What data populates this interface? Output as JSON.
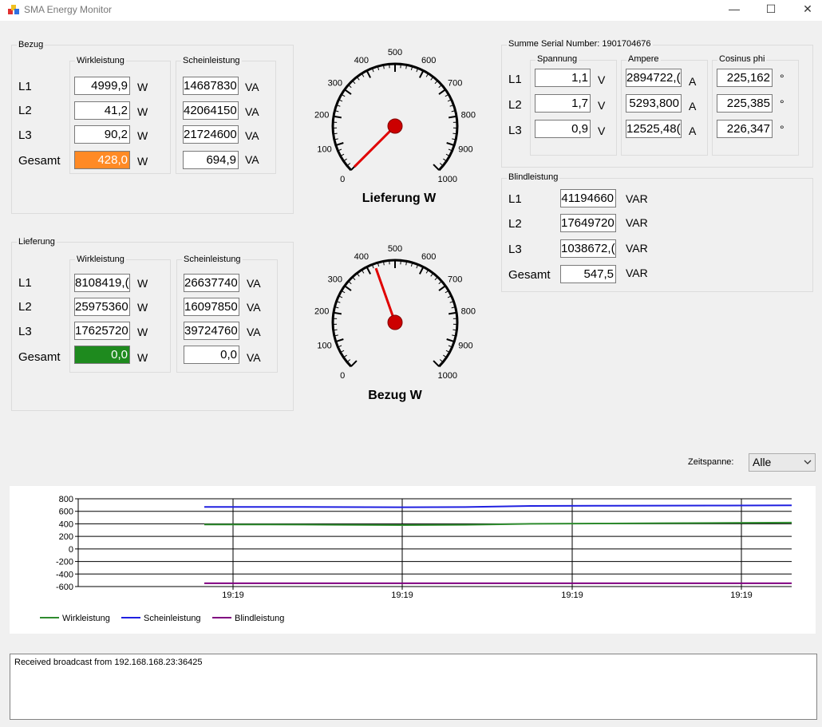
{
  "window": {
    "title": "SMA Energy Monitor",
    "minimize": "—",
    "maximize": "☐",
    "close": "✕"
  },
  "bezug": {
    "title": "Bezug",
    "wirk_title": "Wirkleistung",
    "schein_title": "Scheinleistung",
    "rows": [
      {
        "label": "L1",
        "wirk": "4999,9",
        "wirk_unit": "W",
        "schein": "14687830",
        "schein_unit": "VA"
      },
      {
        "label": "L2",
        "wirk": "41,2",
        "wirk_unit": "W",
        "schein": "42064150",
        "schein_unit": "VA"
      },
      {
        "label": "L3",
        "wirk": "90,2",
        "wirk_unit": "W",
        "schein": "21724600",
        "schein_unit": "VA"
      },
      {
        "label": "Gesamt",
        "wirk": "428,0",
        "wirk_unit": "W",
        "schein": "694,9",
        "schein_unit": "VA"
      }
    ]
  },
  "lieferung": {
    "title": "Lieferung",
    "wirk_title": "Wirkleistung",
    "schein_title": "Scheinleistung",
    "rows": [
      {
        "label": "L1",
        "wirk": "8108419,(",
        "wirk_unit": "W",
        "schein": "26637740",
        "schein_unit": "VA"
      },
      {
        "label": "L2",
        "wirk": "25975360",
        "wirk_unit": "W",
        "schein": "16097850",
        "schein_unit": "VA"
      },
      {
        "label": "L3",
        "wirk": "17625720",
        "wirk_unit": "W",
        "schein": "39724760",
        "schein_unit": "VA"
      },
      {
        "label": "Gesamt",
        "wirk": "0,0",
        "wirk_unit": "W",
        "schein": "0,0",
        "schein_unit": "VA"
      }
    ]
  },
  "gauges": [
    {
      "title": "Lieferung W",
      "value": 0,
      "ticks": [
        "0",
        "100",
        "200",
        "300",
        "400",
        "500",
        "600",
        "700",
        "800",
        "900",
        "1000"
      ]
    },
    {
      "title": "Bezug W",
      "value": 428,
      "ticks": [
        "0",
        "100",
        "200",
        "300",
        "400",
        "500",
        "600",
        "700",
        "800",
        "900",
        "1000"
      ]
    }
  ],
  "summe": {
    "title": "Summe Serial Number: 1901704676",
    "spannung_title": "Spannung",
    "ampere_title": "Ampere",
    "cos_title": "Cosinus phi",
    "rows": [
      {
        "label": "L1",
        "spannung": "1,1",
        "spannung_unit": "V",
        "ampere": "2894722,(",
        "ampere_unit": "A",
        "cos": "225,162",
        "cos_unit": "°"
      },
      {
        "label": "L2",
        "spannung": "1,7",
        "spannung_unit": "V",
        "ampere": "5293,800",
        "ampere_unit": "A",
        "cos": "225,385",
        "cos_unit": "°"
      },
      {
        "label": "L3",
        "spannung": "0,9",
        "spannung_unit": "V",
        "ampere": "12525,48(",
        "ampere_unit": "A",
        "cos": "226,347",
        "cos_unit": "°"
      }
    ]
  },
  "blind": {
    "title": "Blindleistung",
    "rows": [
      {
        "label": "L1",
        "value": "41194660",
        "unit": "VAR"
      },
      {
        "label": "L2",
        "value": "17649720",
        "unit": "VAR"
      },
      {
        "label": "L3",
        "value": "1038672,(",
        "unit": "VAR"
      },
      {
        "label": "Gesamt",
        "value": "547,5",
        "unit": "VAR"
      }
    ]
  },
  "zeitspanne": {
    "label": "Zeitspanne:",
    "selected": "Alle"
  },
  "chart_data": {
    "type": "line",
    "ylim": [
      -600,
      800
    ],
    "yticks": [
      "800",
      "600",
      "400",
      "200",
      "0",
      "-200",
      "-400",
      "-600"
    ],
    "xticks": [
      "19:19",
      "19:19",
      "19:19",
      "19:19"
    ],
    "grid": true,
    "legend_position": "bottom-left",
    "series": [
      {
        "name": "Wirkleistung",
        "color": "#2e8b2e",
        "values": [
          390,
          390,
          385,
          380,
          385,
          400,
          405,
          410,
          415,
          420
        ]
      },
      {
        "name": "Scheinleistung",
        "color": "#2020e0",
        "values": [
          670,
          670,
          668,
          665,
          668,
          685,
          688,
          690,
          692,
          695
        ]
      },
      {
        "name": "Blindleistung",
        "color": "#800080",
        "values": [
          -548,
          -548,
          -548,
          -548,
          -548,
          -548,
          -548,
          -548,
          -548,
          -548
        ]
      }
    ]
  },
  "log": {
    "text": "Received broadcast from 192.168.168.23:36425"
  }
}
